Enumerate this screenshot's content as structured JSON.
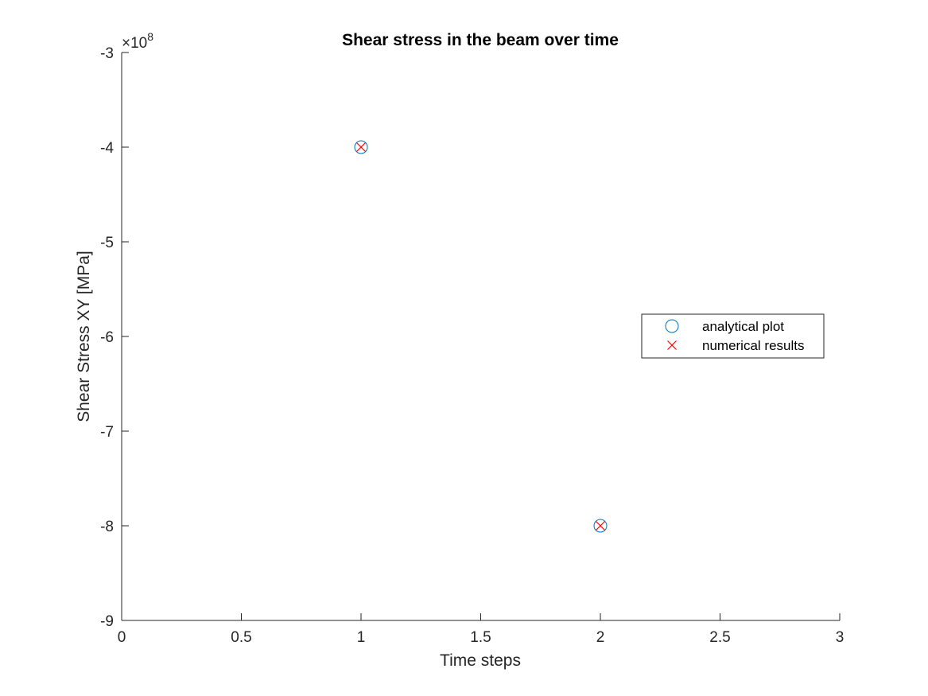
{
  "chart_data": {
    "type": "scatter",
    "title": "Shear stress in the beam over time",
    "xlabel": "Time steps",
    "ylabel": "Shear Stress XY [MPa]",
    "xlim": [
      0,
      3
    ],
    "ylim": [
      -9,
      -3
    ],
    "y_scale_exponent": "8",
    "y_scale_prefix": "×10",
    "x_ticks": [
      "0",
      "0.5",
      "1",
      "1.5",
      "2",
      "2.5",
      "3"
    ],
    "y_ticks": [
      "-3",
      "-4",
      "-5",
      "-6",
      "-7",
      "-8",
      "-9"
    ],
    "grid": false,
    "legend_position": "right",
    "series": [
      {
        "name": "analytical plot",
        "marker": "circle",
        "color": "#0072BD",
        "x": [
          1,
          2
        ],
        "y": [
          -4,
          -8
        ]
      },
      {
        "name": "numerical results",
        "marker": "x",
        "color": "#FF0000",
        "x": [
          1,
          2
        ],
        "y": [
          -4,
          -8
        ]
      }
    ]
  }
}
